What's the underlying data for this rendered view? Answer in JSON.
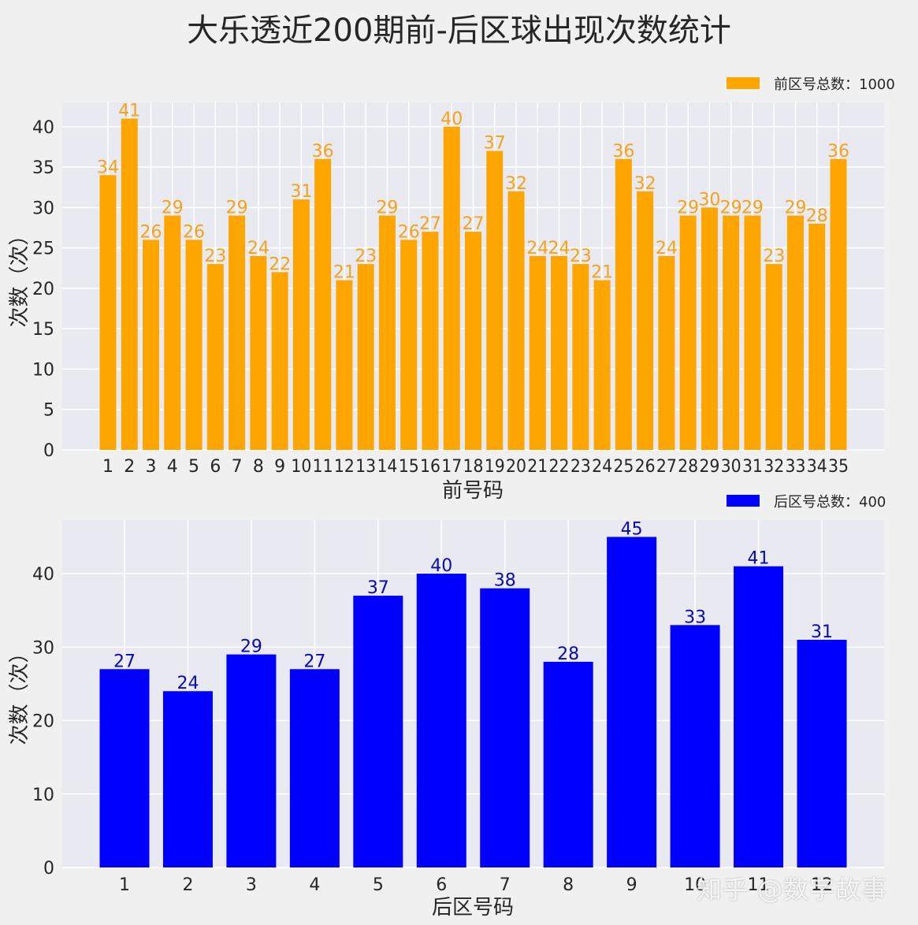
{
  "title": "大乐透近200期前-后区球出现次数统计",
  "watermark": "知乎 @数字故事",
  "chart_data": [
    {
      "type": "bar",
      "title": "",
      "xlabel": "前号码",
      "ylabel": "次数（次）",
      "legend": "前区号总数：1000",
      "legend_position": "upper right (above axes)",
      "color": "#FFA500",
      "label_color": "#F5A31A",
      "grid": true,
      "ylim": [
        0,
        43
      ],
      "yticks": [
        0,
        5,
        10,
        15,
        20,
        25,
        30,
        35,
        40
      ],
      "categories": [
        "1",
        "2",
        "3",
        "4",
        "5",
        "6",
        "7",
        "8",
        "9",
        "10",
        "11",
        "12",
        "13",
        "14",
        "15",
        "16",
        "17",
        "18",
        "19",
        "20",
        "21",
        "22",
        "23",
        "24",
        "25",
        "26",
        "27",
        "28",
        "29",
        "30",
        "31",
        "32",
        "33",
        "34",
        "35"
      ],
      "values": [
        34,
        41,
        26,
        29,
        26,
        23,
        29,
        24,
        22,
        31,
        36,
        21,
        23,
        29,
        26,
        27,
        40,
        27,
        37,
        32,
        24,
        24,
        23,
        21,
        36,
        32,
        24,
        29,
        30,
        29,
        29,
        23,
        29,
        28,
        36
      ]
    },
    {
      "type": "bar",
      "title": "",
      "xlabel": "后区号码",
      "ylabel": "次数（次）",
      "legend": "后区号总数：400",
      "legend_position": "upper right (above axes)",
      "color": "#0000FF",
      "label_color": "#0A0AB4",
      "grid": true,
      "ylim": [
        0,
        47.3
      ],
      "yticks": [
        0,
        10,
        20,
        30,
        40
      ],
      "categories": [
        "1",
        "2",
        "3",
        "4",
        "5",
        "6",
        "7",
        "8",
        "9",
        "10",
        "11",
        "12"
      ],
      "values": [
        27,
        24,
        29,
        27,
        37,
        40,
        38,
        28,
        45,
        33,
        41,
        31
      ]
    }
  ]
}
